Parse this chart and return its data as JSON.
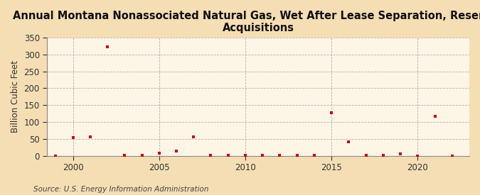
{
  "title": "Annual Montana Nonassociated Natural Gas, Wet After Lease Separation, Reserves\nAcquisitions",
  "ylabel": "Billion Cubic Feet",
  "source": "Source: U.S. Energy Information Administration",
  "years": [
    1999,
    2000,
    2001,
    2002,
    2003,
    2004,
    2005,
    2006,
    2007,
    2008,
    2009,
    2010,
    2011,
    2012,
    2013,
    2014,
    2015,
    2016,
    2017,
    2018,
    2019,
    2020,
    2021,
    2022
  ],
  "values": [
    0.5,
    55,
    57,
    322,
    2,
    3,
    8,
    15,
    57,
    2,
    2,
    3,
    2,
    2,
    3,
    2,
    128,
    42,
    3,
    2,
    6,
    1,
    118,
    0.5
  ],
  "xlim": [
    1998.5,
    2023
  ],
  "ylim": [
    0,
    350
  ],
  "yticks": [
    0,
    50,
    100,
    150,
    200,
    250,
    300,
    350
  ],
  "xticks": [
    2000,
    2005,
    2010,
    2015,
    2020
  ],
  "marker_color": "#cc0000",
  "marker": "s",
  "marker_size": 3.5,
  "fig_bg_color": "#f5deb3",
  "plot_bg_color": "#fdf5e6",
  "grid_color": "#aaaaaa",
  "title_fontsize": 10.5,
  "label_fontsize": 8.5,
  "tick_fontsize": 8.5,
  "source_fontsize": 7.5
}
